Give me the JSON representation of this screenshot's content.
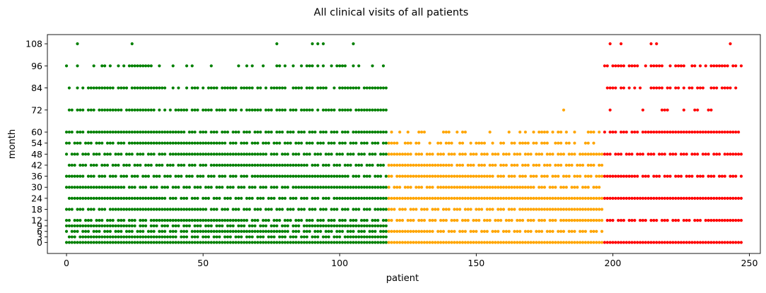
{
  "chart_data": {
    "type": "scatter",
    "title": "All clinical visits of all patients",
    "xlabel": "patient",
    "ylabel": "month",
    "xlim": [
      -7,
      254
    ],
    "ylim": [
      -6,
      113
    ],
    "xticks": [
      0,
      50,
      100,
      150,
      200,
      250
    ],
    "yticks": [
      0,
      3,
      6,
      9,
      12,
      18,
      24,
      30,
      36,
      42,
      48,
      54,
      60,
      72,
      84,
      96,
      108
    ],
    "grid": false,
    "legend": "none",
    "colors": {
      "group_1": "#008000",
      "group_2": "#ffa500",
      "group_3": "#ff0000"
    },
    "groups": [
      {
        "color": "#008000",
        "patients": [
          0,
          117
        ],
        "visits": [
          {
            "month": 0,
            "patients": "all"
          },
          {
            "month": 3,
            "patients": "most"
          },
          {
            "month": 6,
            "patients": "most"
          },
          {
            "month": 9,
            "patients": "most"
          },
          {
            "month": 12,
            "patients": "most"
          },
          {
            "month": 18,
            "patients": "most"
          },
          {
            "month": 24,
            "patients": "most"
          },
          {
            "month": 30,
            "patients": "most"
          },
          {
            "month": 36,
            "patients": "most"
          },
          {
            "month": 42,
            "patients": "most"
          },
          {
            "month": 48,
            "patients": "most"
          },
          {
            "month": 54,
            "patients": "most"
          },
          {
            "month": 60,
            "patients": "most"
          },
          {
            "month": 72,
            "patients": [
              1,
              2,
              4,
              5,
              6,
              8,
              9,
              10,
              12,
              13,
              14,
              15,
              16,
              17,
              18,
              19,
              20,
              22,
              23,
              24,
              25,
              26,
              27,
              28,
              29,
              30,
              31,
              32,
              34,
              36,
              38,
              40,
              41,
              42,
              43,
              44,
              46,
              47,
              48,
              50,
              51,
              52,
              53,
              55,
              56,
              57,
              58,
              60,
              61,
              62,
              64,
              66,
              67,
              68,
              69,
              70,
              71,
              73,
              74,
              75,
              77,
              78,
              79,
              80,
              82,
              83,
              84,
              86,
              87,
              88,
              89,
              90,
              92,
              94,
              95,
              96,
              97,
              98,
              100,
              101,
              102,
              103,
              104,
              106,
              107,
              108,
              109,
              110,
              111,
              112,
              113,
              114,
              115,
              116,
              117
            ]
          },
          {
            "month": 84,
            "patients": [
              1,
              4,
              6,
              8,
              9,
              10,
              11,
              12,
              13,
              14,
              15,
              16,
              17,
              19,
              20,
              21,
              22,
              24,
              25,
              26,
              27,
              28,
              29,
              30,
              31,
              32,
              33,
              34,
              35,
              36,
              39,
              41,
              44,
              46,
              47,
              48,
              50,
              52,
              53,
              54,
              55,
              57,
              58,
              59,
              60,
              61,
              62,
              64,
              65,
              66,
              67,
              68,
              70,
              71,
              73,
              75,
              76,
              77,
              78,
              79,
              80,
              83,
              84,
              85,
              86,
              88,
              89,
              90,
              92,
              93,
              94,
              95,
              98,
              100,
              101,
              102,
              103,
              104,
              105,
              106,
              107,
              109,
              110,
              111,
              112,
              113,
              114,
              115,
              116,
              117
            ]
          },
          {
            "month": 96,
            "patients": [
              0,
              4,
              10,
              13,
              14,
              16,
              19,
              21,
              23,
              24,
              25,
              26,
              27,
              28,
              29,
              30,
              31,
              34,
              39,
              44,
              46,
              53,
              63,
              66,
              68,
              72,
              77,
              78,
              80,
              83,
              86,
              88,
              89,
              90,
              92,
              94,
              97,
              99,
              100,
              101,
              102,
              105,
              107,
              112,
              116
            ]
          },
          {
            "month": 108,
            "patients": [
              4,
              24,
              77,
              90,
              92,
              94,
              105
            ]
          }
        ]
      },
      {
        "color": "#ffa500",
        "patients": [
          118,
          196
        ],
        "visits": [
          {
            "month": 0,
            "patients": "all"
          },
          {
            "month": 6,
            "patients": "most"
          },
          {
            "month": 12,
            "patients": "most"
          },
          {
            "month": 18,
            "patients": "most"
          },
          {
            "month": 24,
            "patients": "all"
          },
          {
            "month": 30,
            "patients": "most"
          },
          {
            "month": 36,
            "patients": "most"
          },
          {
            "month": 42,
            "patients": "most"
          },
          {
            "month": 48,
            "patients": "most"
          },
          {
            "month": 54,
            "patients": [
              118,
              119,
              120,
              121,
              124,
              125,
              126,
              128,
              129,
              133,
              136,
              137,
              139,
              140,
              141,
              144,
              145,
              148,
              150,
              151,
              152,
              153,
              156,
              159,
              160,
              163,
              164,
              166,
              167,
              168,
              169,
              171,
              172,
              174,
              175,
              176,
              179,
              180,
              181,
              183,
              184,
              186,
              190,
              191,
              193
            ]
          },
          {
            "month": 60,
            "patients": [
              119,
              122,
              125,
              129,
              130,
              131,
              138,
              139,
              140,
              143,
              145,
              146,
              155,
              162,
              166,
              168,
              171,
              173,
              174,
              175,
              176,
              178,
              180,
              181,
              183,
              186,
              191,
              192,
              193,
              195
            ]
          },
          {
            "month": 72,
            "patients": [
              182
            ]
          }
        ]
      },
      {
        "color": "#ff0000",
        "patients": [
          197,
          247
        ],
        "visits": [
          {
            "month": 0,
            "patients": "all"
          },
          {
            "month": 12,
            "patients": "most"
          },
          {
            "month": 24,
            "patients": "all"
          },
          {
            "month": 36,
            "patients": "most"
          },
          {
            "month": 48,
            "patients": "most"
          },
          {
            "month": 60,
            "patients": "most"
          },
          {
            "month": 72,
            "patients": [
              199,
              211,
              218,
              219,
              220,
              226,
              230,
              231,
              235,
              236
            ]
          },
          {
            "month": 84,
            "patients": [
              198,
              199,
              200,
              201,
              203,
              204,
              206,
              208,
              210,
              214,
              215,
              216,
              217,
              218,
              220,
              221,
              223,
              224,
              226,
              228,
              229,
              231,
              232,
              233,
              236,
              237,
              238,
              240,
              241,
              242,
              243,
              245
            ]
          },
          {
            "month": 96,
            "patients": [
              197,
              198,
              200,
              201,
              202,
              203,
              204,
              206,
              207,
              208,
              209,
              212,
              214,
              215,
              216,
              217,
              218,
              221,
              223,
              224,
              225,
              226,
              229,
              230,
              232,
              234,
              236,
              237,
              238,
              239,
              240,
              241,
              242,
              244,
              245,
              247
            ]
          },
          {
            "month": 108,
            "patients": [
              199,
              203,
              214,
              216,
              243
            ]
          }
        ]
      }
    ]
  }
}
